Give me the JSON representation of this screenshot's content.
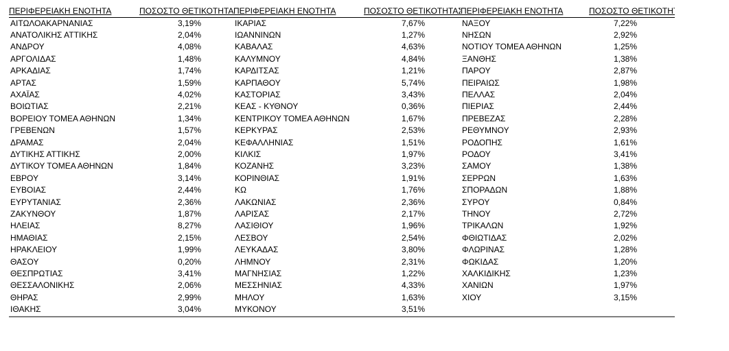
{
  "headers": {
    "region": "ΠΕΡΙΦΕΡΕΙΑΚΗ ΕΝΟΤΗΤΑ",
    "rate": "ΠΟΣΟΣΤΟ ΘΕΤΙΚΟΤΗΤΑΣ"
  },
  "rows": [
    [
      [
        "ΑΙΤΩΛΟΑΚΑΡΝΑΝΙΑΣ",
        "3,19%"
      ],
      [
        "ΙΚΑΡΙΑΣ",
        "7,67%"
      ],
      [
        "ΝΑΞΟΥ",
        "7,22%"
      ]
    ],
    [
      [
        "ΑΝΑΤΟΛΙΚΗΣ ΑΤΤΙΚΗΣ",
        "2,04%"
      ],
      [
        "ΙΩΑΝΝΙΝΩΝ",
        "1,27%"
      ],
      [
        "ΝΗΣΩΝ",
        "2,92%"
      ]
    ],
    [
      [
        "ΑΝΔΡΟΥ",
        "4,08%"
      ],
      [
        "ΚΑΒΑΛΑΣ",
        "4,63%"
      ],
      [
        "ΝΟΤΙΟΥ ΤΟΜΕΑ ΑΘΗΝΩΝ",
        "1,25%"
      ]
    ],
    [
      [
        "ΑΡΓΟΛΙΔΑΣ",
        "1,48%"
      ],
      [
        "ΚΑΛΥΜΝΟΥ",
        "4,84%"
      ],
      [
        "ΞΑΝΘΗΣ",
        "1,38%"
      ]
    ],
    [
      [
        "ΑΡΚΑΔΙΑΣ",
        "1,74%"
      ],
      [
        "ΚΑΡΔΙΤΣΑΣ",
        "1,21%"
      ],
      [
        "ΠΑΡΟΥ",
        "2,87%"
      ]
    ],
    [
      [
        "ΑΡΤΑΣ",
        "1,59%"
      ],
      [
        "ΚΑΡΠΑΘΟΥ",
        "5,74%"
      ],
      [
        "ΠΕΙΡΑΙΩΣ",
        "1,98%"
      ]
    ],
    [
      [
        "ΑΧΑΪΑΣ",
        "4,02%"
      ],
      [
        "ΚΑΣΤΟΡΙΑΣ",
        "3,43%"
      ],
      [
        "ΠΕΛΛΑΣ",
        "2,04%"
      ]
    ],
    [
      [
        "ΒΟΙΩΤΙΑΣ",
        "2,21%"
      ],
      [
        "ΚΕΑΣ - ΚΥΘΝΟΥ",
        "0,36%"
      ],
      [
        "ΠΙΕΡΙΑΣ",
        "2,44%"
      ]
    ],
    [
      [
        "ΒΟΡΕΙΟΥ ΤΟΜΕΑ ΑΘΗΝΩΝ",
        "1,34%"
      ],
      [
        "ΚΕΝΤΡΙΚΟΥ ΤΟΜΕΑ ΑΘΗΝΩΝ",
        "1,67%"
      ],
      [
        "ΠΡΕΒΕΖΑΣ",
        "2,28%"
      ]
    ],
    [
      [
        "ΓΡΕΒΕΝΩΝ",
        "1,57%"
      ],
      [
        "ΚΕΡΚΥΡΑΣ",
        "2,53%"
      ],
      [
        "ΡΕΘΥΜΝΟΥ",
        "2,93%"
      ]
    ],
    [
      [
        "ΔΡΑΜΑΣ",
        "2,04%"
      ],
      [
        "ΚΕΦΑΛΛΗΝΙΑΣ",
        "1,51%"
      ],
      [
        "ΡΟΔΟΠΗΣ",
        "1,61%"
      ]
    ],
    [
      [
        "ΔΥΤΙΚΗΣ ΑΤΤΙΚΗΣ",
        "2,00%"
      ],
      [
        "ΚΙΛΚΙΣ",
        "1,97%"
      ],
      [
        "ΡΟΔΟΥ",
        "3,41%"
      ]
    ],
    [
      [
        "ΔΥΤΙΚΟΥ ΤΟΜΕΑ ΑΘΗΝΩΝ",
        "1,84%"
      ],
      [
        "ΚΟΖΑΝΗΣ",
        "3,23%"
      ],
      [
        "ΣΑΜΟΥ",
        "1,38%"
      ]
    ],
    [
      [
        "ΕΒΡΟΥ",
        "3,14%"
      ],
      [
        "ΚΟΡΙΝΘΙΑΣ",
        "1,91%"
      ],
      [
        "ΣΕΡΡΩΝ",
        "1,63%"
      ]
    ],
    [
      [
        "ΕΥΒΟΙΑΣ",
        "2,44%"
      ],
      [
        "ΚΩ",
        "1,76%"
      ],
      [
        "ΣΠΟΡΑΔΩΝ",
        "1,88%"
      ]
    ],
    [
      [
        "ΕΥΡΥΤΑΝΙΑΣ",
        "2,36%"
      ],
      [
        "ΛΑΚΩΝΙΑΣ",
        "2,36%"
      ],
      [
        "ΣΥΡΟΥ",
        "0,84%"
      ]
    ],
    [
      [
        "ΖΑΚΥΝΘΟΥ",
        "1,87%"
      ],
      [
        "ΛΑΡΙΣΑΣ",
        "2,17%"
      ],
      [
        "ΤΗΝΟΥ",
        "2,72%"
      ]
    ],
    [
      [
        "ΗΛΕΙΑΣ",
        "8,27%"
      ],
      [
        "ΛΑΣΙΘΙΟΥ",
        "1,96%"
      ],
      [
        "ΤΡΙΚΑΛΩΝ",
        "1,92%"
      ]
    ],
    [
      [
        "ΗΜΑΘΙΑΣ",
        "2,15%"
      ],
      [
        "ΛΕΣΒΟΥ",
        "2,54%"
      ],
      [
        "ΦΘΙΩΤΙΔΑΣ",
        "2,02%"
      ]
    ],
    [
      [
        "ΗΡΑΚΛΕΙΟΥ",
        "1,99%"
      ],
      [
        "ΛΕΥΚΑΔΑΣ",
        "3,80%"
      ],
      [
        "ΦΛΩΡΙΝΑΣ",
        "1,28%"
      ]
    ],
    [
      [
        "ΘΑΣΟΥ",
        "0,20%"
      ],
      [
        "ΛΗΜΝΟΥ",
        "2,31%"
      ],
      [
        "ΦΩΚΙΔΑΣ",
        "1,20%"
      ]
    ],
    [
      [
        "ΘΕΣΠΡΩΤΙΑΣ",
        "3,41%"
      ],
      [
        "ΜΑΓΝΗΣΙΑΣ",
        "1,22%"
      ],
      [
        "ΧΑΛΚΙΔΙΚΗΣ",
        "1,23%"
      ]
    ],
    [
      [
        "ΘΕΣΣΑΛΟΝΙΚΗΣ",
        "2,06%"
      ],
      [
        "ΜΕΣΣΗΝΙΑΣ",
        "4,33%"
      ],
      [
        "ΧΑΝΙΩΝ",
        "1,97%"
      ]
    ],
    [
      [
        "ΘΗΡΑΣ",
        "2,99%"
      ],
      [
        "ΜΗΛΟΥ",
        "1,63%"
      ],
      [
        "ΧΙΟΥ",
        "3,15%"
      ]
    ],
    [
      [
        "ΙΘΑΚΗΣ",
        "3,04%"
      ],
      [
        "ΜΥΚΟΝΟΥ",
        "3,51%"
      ],
      [
        "",
        ""
      ]
    ]
  ]
}
